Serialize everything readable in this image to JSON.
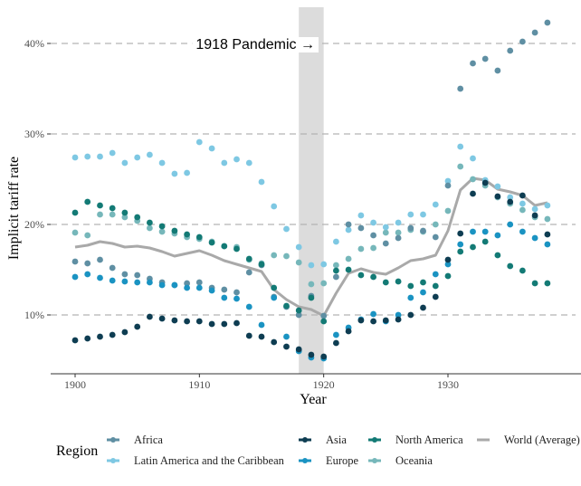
{
  "chart_data": {
    "type": "scatter",
    "title": "",
    "xlabel": "Year",
    "ylabel": "Implicit tariff rate",
    "xlim": [
      1898,
      1940
    ],
    "ylim": [
      3.5,
      44.5
    ],
    "x_ticks": [
      1900,
      1910,
      1920,
      1930
    ],
    "x_tick_labels": [
      "1900",
      "1910",
      "1920",
      "1930"
    ],
    "y_ticks": [
      10,
      20,
      30,
      40
    ],
    "y_tick_labels": [
      "10%",
      "20%",
      "30%",
      "40%"
    ],
    "grid": "horizontal dashed major lines",
    "shaded_region": {
      "from": 1918,
      "to": 1920,
      "color": "#DCDCDC"
    },
    "annotation": {
      "text": "1918 Pandemic →",
      "x": 1914.5,
      "y": 40
    },
    "legend": {
      "title": "Region",
      "placement": "bottom"
    },
    "years": [
      1900,
      1901,
      1902,
      1903,
      1904,
      1905,
      1906,
      1907,
      1908,
      1909,
      1910,
      1911,
      1912,
      1913,
      1914,
      1915,
      1916,
      1917,
      1918,
      1919,
      1920,
      1921,
      1922,
      1923,
      1924,
      1925,
      1926,
      1927,
      1928,
      1929,
      1930,
      1931,
      1932,
      1933,
      1934,
      1935,
      1936,
      1937,
      1938
    ],
    "series": [
      {
        "name": "Africa",
        "kind": "points",
        "color": "#5F8FA3",
        "values": [
          15.9,
          15.7,
          16.1,
          15.2,
          14.5,
          14.4,
          14.0,
          13.6,
          13.3,
          13.5,
          13.6,
          13.0,
          12.8,
          12.5,
          14.7,
          15.5,
          12.0,
          10.9,
          10.0,
          12.1,
          9.9,
          14.2,
          20.0,
          19.6,
          18.8,
          17.9,
          18.5,
          19.6,
          19.3,
          18.6,
          24.3,
          35.0,
          37.8,
          38.3,
          37.0,
          39.2,
          40.2,
          41.2,
          42.3
        ]
      },
      {
        "name": "Asia",
        "kind": "points",
        "color": "#0E3D52",
        "values": [
          7.2,
          7.4,
          7.6,
          7.8,
          8.1,
          8.7,
          9.8,
          9.6,
          9.4,
          9.3,
          9.3,
          9.0,
          9.0,
          9.1,
          7.7,
          7.6,
          7.0,
          6.5,
          6.2,
          5.6,
          5.4,
          6.9,
          8.2,
          9.4,
          9.3,
          9.4,
          9.5,
          10.0,
          10.8,
          12.0,
          16.1,
          19.0,
          23.4,
          24.6,
          23.1,
          22.5,
          23.2,
          21.0,
          18.9
        ]
      },
      {
        "name": "North America",
        "kind": "points",
        "color": "#137A75",
        "values": [
          21.3,
          22.5,
          22.1,
          21.8,
          21.3,
          20.8,
          20.2,
          19.8,
          19.3,
          18.9,
          18.6,
          18.0,
          17.6,
          17.3,
          16.2,
          15.6,
          13.0,
          11.0,
          10.5,
          11.9,
          9.3,
          14.9,
          15.0,
          14.4,
          14.2,
          13.6,
          13.7,
          13.2,
          13.6,
          13.2,
          14.3,
          17.0,
          17.5,
          18.1,
          16.6,
          15.4,
          14.9,
          13.5,
          13.5
        ]
      },
      {
        "name": "Latin America and the Caribbean",
        "kind": "points",
        "color": "#7EC8E3",
        "values": [
          27.4,
          27.5,
          27.5,
          27.9,
          26.8,
          27.4,
          27.7,
          26.8,
          25.6,
          25.7,
          29.1,
          28.4,
          26.8,
          27.2,
          26.8,
          24.7,
          22.0,
          19.5,
          17.5,
          15.5,
          15.6,
          18.1,
          19.4,
          21.0,
          20.2,
          19.7,
          20.2,
          21.1,
          21.1,
          22.2,
          24.8,
          28.6,
          27.3,
          24.9,
          24.2,
          23.0,
          22.3,
          21.7,
          22.1
        ]
      },
      {
        "name": "Europe",
        "kind": "points",
        "color": "#1A93C2",
        "values": [
          14.2,
          14.5,
          14.1,
          13.8,
          13.7,
          13.6,
          13.6,
          13.3,
          13.3,
          13.0,
          13.0,
          12.7,
          11.9,
          11.8,
          10.9,
          8.9,
          11.9,
          7.6,
          6.0,
          5.3,
          5.2,
          7.8,
          8.6,
          9.5,
          10.1,
          9.3,
          10.0,
          11.9,
          12.5,
          14.5,
          15.6,
          17.8,
          19.2,
          19.2,
          18.8,
          20.0,
          19.2,
          18.5,
          17.8
        ]
      },
      {
        "name": "Oceania",
        "kind": "points",
        "color": "#76B7BA",
        "values": [
          19.1,
          18.8,
          21.1,
          21.1,
          20.8,
          20.4,
          19.6,
          19.2,
          19.0,
          18.6,
          18.4,
          18.1,
          17.6,
          17.5,
          16.1,
          15.7,
          16.6,
          16.5,
          15.8,
          13.4,
          13.5,
          15.5,
          16.2,
          17.3,
          17.4,
          19.1,
          19.1,
          19.4,
          19.2,
          20.0,
          21.5,
          26.4,
          25.0,
          24.3,
          23.0,
          22.3,
          21.6,
          20.8,
          20.6
        ]
      },
      {
        "name": "World (Average)",
        "kind": "line",
        "color": "#A9A9A9",
        "values": [
          17.5,
          17.7,
          18.1,
          17.9,
          17.5,
          17.6,
          17.4,
          17.0,
          16.5,
          16.8,
          17.1,
          16.6,
          16.0,
          15.6,
          15.2,
          14.8,
          12.8,
          11.7,
          10.9,
          10.6,
          9.9,
          12.4,
          14.6,
          15.1,
          14.7,
          14.5,
          15.2,
          16.0,
          16.2,
          16.6,
          19.3,
          23.8,
          25.1,
          24.9,
          23.9,
          23.6,
          23.2,
          22.1,
          22.4
        ]
      }
    ],
    "legend_rows": [
      [
        "Africa",
        "Asia",
        "North America",
        "World (Average)"
      ],
      [
        "Latin America and the Caribbean",
        "Europe",
        "Oceania"
      ]
    ]
  }
}
